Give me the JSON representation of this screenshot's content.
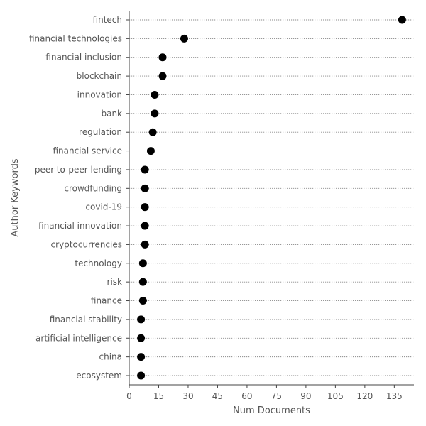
{
  "chart_data": {
    "type": "scatter",
    "style": "dot-plot",
    "categories": [
      "fintech",
      "financial technologies",
      "financial inclusion",
      "blockchain",
      "innovation",
      "bank",
      "regulation",
      "financial service",
      "peer-to-peer lending",
      "crowdfunding",
      "covid-19",
      "financial innovation",
      "cryptocurrencies",
      "technology",
      "risk",
      "finance",
      "financial stability",
      "artificial intelligence",
      "china",
      "ecosystem"
    ],
    "values": [
      139,
      28,
      17,
      17,
      13,
      13,
      12,
      11,
      8,
      8,
      8,
      8,
      8,
      7,
      7,
      7,
      6,
      6,
      6,
      6
    ],
    "xlabel": "Num Documents",
    "ylabel": "Author Keywords",
    "xlim": [
      0,
      145
    ],
    "xticks": [
      0,
      15,
      30,
      45,
      60,
      75,
      90,
      105,
      120,
      135
    ],
    "grid": "horizontal-dotted",
    "marker_color": "#000000"
  }
}
